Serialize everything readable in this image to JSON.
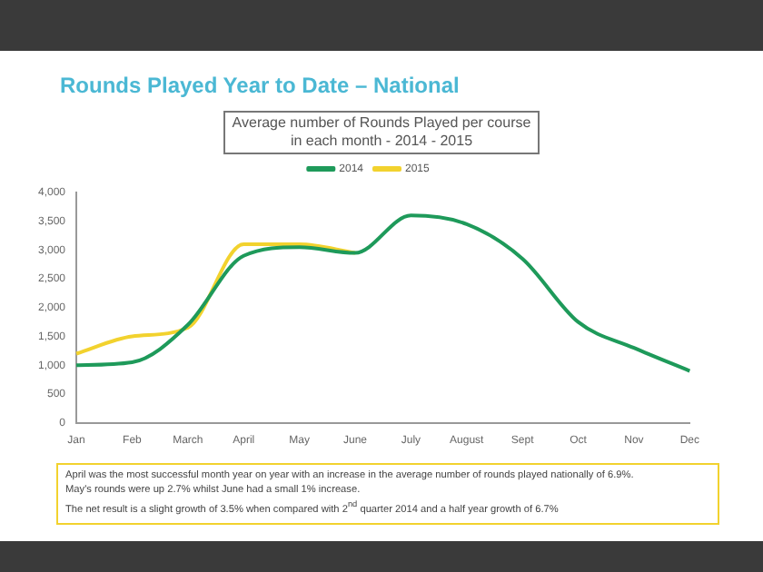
{
  "chart_data": {
    "type": "line",
    "title": "Rounds Played Year to Date – National",
    "subtitle": "Average number of Rounds Played per course in each month - 2014 - 2015",
    "categories": [
      "Jan",
      "Feb",
      "March",
      "April",
      "May",
      "June",
      "July",
      "August",
      "Sept",
      "Oct",
      "Nov",
      "Dec"
    ],
    "series": [
      {
        "name": "2014",
        "color": "#1e9a5a",
        "values": [
          1000,
          1050,
          1700,
          2900,
          3050,
          2950,
          3600,
          3450,
          2850,
          1750,
          1300,
          900
        ]
      },
      {
        "name": "2015",
        "color": "#f2d22e",
        "values": [
          1200,
          1500,
          1650,
          3100,
          3100,
          2950,
          null,
          null,
          null,
          null,
          null,
          null
        ]
      }
    ],
    "ylim": [
      0,
      4000
    ],
    "yticks": [
      {
        "value": 0,
        "label": "0"
      },
      {
        "value": 500,
        "label": "500"
      },
      {
        "value": 1000,
        "label": "1,000"
      },
      {
        "value": 1500,
        "label": "1,500"
      },
      {
        "value": 2000,
        "label": "2,000"
      },
      {
        "value": 2500,
        "label": "2,500"
      },
      {
        "value": 3000,
        "label": "3,000"
      },
      {
        "value": 3500,
        "label": "3,500"
      },
      {
        "value": 4000,
        "label": "4,000"
      }
    ],
    "grid": false,
    "legend": "top",
    "marker": "none",
    "line_style": "solid",
    "annotations": [
      "April was the most successful month year on year with an increase in the average number of rounds played nationally of 6.9%.",
      "May's rounds were up 2.7% whilst June had a small 1% increase.",
      "The net result is a slight growth of 3.5% when compared with 2$^{nd}$ quarter 2014 and a half year growth of 6.7%"
    ]
  }
}
